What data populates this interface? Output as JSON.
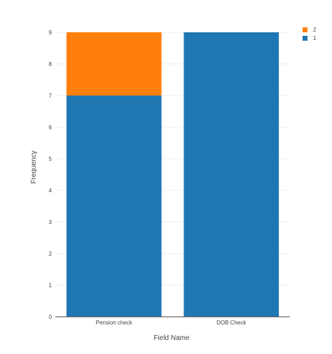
{
  "chart_data": {
    "type": "bar",
    "stacked": true,
    "categories": [
      "Pension check",
      "DOB Check"
    ],
    "series": [
      {
        "name": "1",
        "values": [
          7,
          9
        ],
        "color": "#1f77b4"
      },
      {
        "name": "2",
        "values": [
          2,
          0
        ],
        "color": "#ff7f0e"
      }
    ],
    "legend_order": [
      "2",
      "1"
    ],
    "xlabel": "Field Name",
    "ylabel": "Frequency",
    "ylim": [
      0,
      9
    ],
    "yticks": [
      0,
      1,
      2,
      3,
      4,
      5,
      6,
      7,
      8,
      9
    ],
    "grid": true,
    "legend_position": "top-right"
  }
}
